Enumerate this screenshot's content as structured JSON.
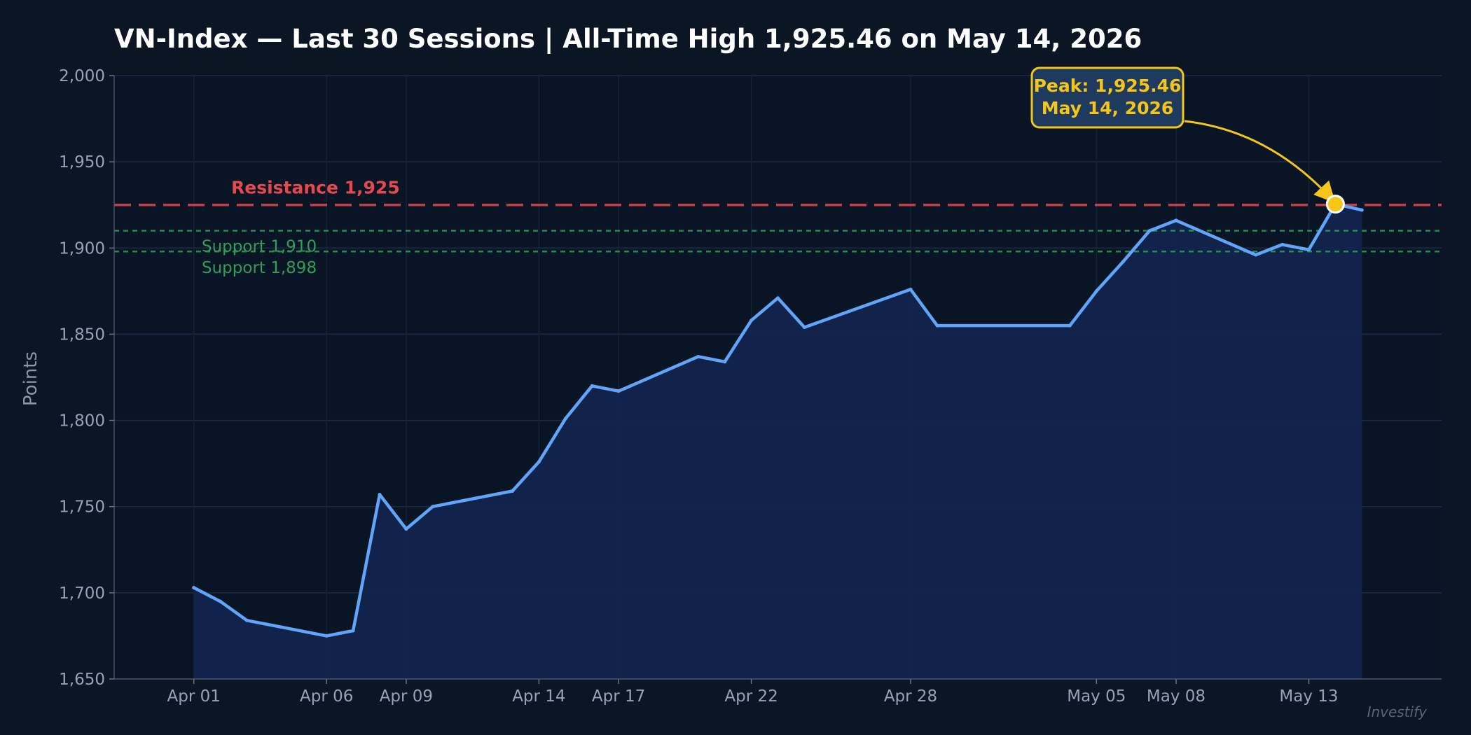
{
  "title": "VN-Index — Last 30 Sessions  |  All-Time High 1,925.46 on May 14, 2026",
  "watermark": "Investify",
  "chart_data": {
    "type": "area",
    "ylabel": "Points",
    "ylim": [
      1650,
      2000
    ],
    "yticks": [
      1650,
      1700,
      1750,
      1800,
      1850,
      1900,
      1950,
      2000
    ],
    "ytick_labels": [
      "1,650",
      "1,700",
      "1,750",
      "1,800",
      "1,850",
      "1,900",
      "1,950",
      "2,000"
    ],
    "xlim": [
      "2026-03-29",
      "2026-05-18"
    ],
    "xticks": [
      {
        "date": "2026-04-01",
        "label": "Apr 01"
      },
      {
        "date": "2026-04-06",
        "label": "Apr 06"
      },
      {
        "date": "2026-04-09",
        "label": "Apr 09"
      },
      {
        "date": "2026-04-14",
        "label": "Apr 14"
      },
      {
        "date": "2026-04-17",
        "label": "Apr 17"
      },
      {
        "date": "2026-04-22",
        "label": "Apr 22"
      },
      {
        "date": "2026-04-28",
        "label": "Apr 28"
      },
      {
        "date": "2026-05-05",
        "label": "May 05"
      },
      {
        "date": "2026-05-08",
        "label": "May 08"
      },
      {
        "date": "2026-05-13",
        "label": "May 13"
      }
    ],
    "grid": true,
    "series": [
      {
        "color": "#60a5fa",
        "fill_color": "#12244d",
        "points": [
          {
            "x": "2026-04-01",
            "y": 1703
          },
          {
            "x": "2026-04-02",
            "y": 1695
          },
          {
            "x": "2026-04-03",
            "y": 1684
          },
          {
            "x": "2026-04-06",
            "y": 1675
          },
          {
            "x": "2026-04-07",
            "y": 1678
          },
          {
            "x": "2026-04-08",
            "y": 1757
          },
          {
            "x": "2026-04-09",
            "y": 1737
          },
          {
            "x": "2026-04-10",
            "y": 1750
          },
          {
            "x": "2026-04-13",
            "y": 1759
          },
          {
            "x": "2026-04-14",
            "y": 1776
          },
          {
            "x": "2026-04-15",
            "y": 1801
          },
          {
            "x": "2026-04-16",
            "y": 1820
          },
          {
            "x": "2026-04-17",
            "y": 1817
          },
          {
            "x": "2026-04-20",
            "y": 1837
          },
          {
            "x": "2026-04-21",
            "y": 1834
          },
          {
            "x": "2026-04-22",
            "y": 1858
          },
          {
            "x": "2026-04-23",
            "y": 1871
          },
          {
            "x": "2026-04-24",
            "y": 1854
          },
          {
            "x": "2026-04-28",
            "y": 1876
          },
          {
            "x": "2026-04-29",
            "y": 1855
          },
          {
            "x": "2026-05-04",
            "y": 1855
          },
          {
            "x": "2026-05-05",
            "y": 1875
          },
          {
            "x": "2026-05-06",
            "y": 1892
          },
          {
            "x": "2026-05-07",
            "y": 1910
          },
          {
            "x": "2026-05-08",
            "y": 1916
          },
          {
            "x": "2026-05-11",
            "y": 1896
          },
          {
            "x": "2026-05-12",
            "y": 1902
          },
          {
            "x": "2026-05-13",
            "y": 1899
          },
          {
            "x": "2026-05-14",
            "y": 1925.46
          },
          {
            "x": "2026-05-15",
            "y": 1922
          }
        ]
      }
    ],
    "reference_lines": [
      {
        "value": 1925,
        "label": "Resistance  1,925",
        "color": "#e5484d",
        "style": "dashed"
      },
      {
        "value": 1910,
        "label": "Support 1,910",
        "color": "#2f9e57",
        "style": "dotted"
      },
      {
        "value": 1898,
        "label": "Support 1,898",
        "color": "#2f9e57",
        "style": "dotted"
      }
    ],
    "annotation": {
      "line1": "Peak: 1,925.46",
      "line2": "May 14, 2026",
      "target": {
        "x": "2026-05-14",
        "y": 1925.46
      },
      "box_color": "#1e3a5f",
      "border_color": "#f5c518",
      "marker_color": "#f5c518"
    }
  }
}
